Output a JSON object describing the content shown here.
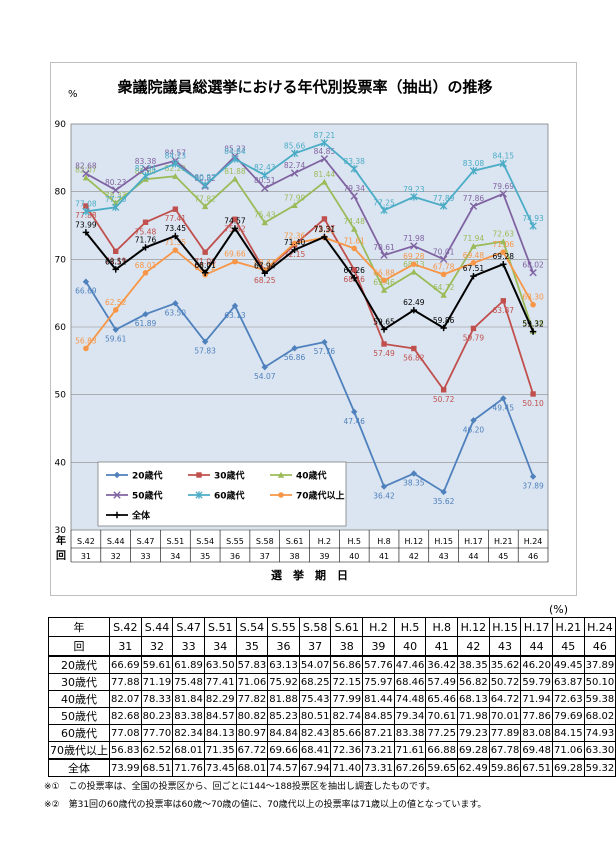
{
  "chart_data": {
    "type": "line",
    "title": "衆議院議員総選挙における年代別投票率（抽出）の推移",
    "ylabel": "%",
    "xlabel": "選　挙　期　日",
    "ylim": [
      30,
      90
    ],
    "yticks": [
      30,
      40,
      50,
      60,
      70,
      80,
      90
    ],
    "grid": true,
    "x_row_label_era": "年",
    "x_row_label_round": "回",
    "categories": [
      "S.42",
      "S.44",
      "S.47",
      "S.51",
      "S.54",
      "S.55",
      "S.58",
      "S.61",
      "H.2",
      "H.5",
      "H.8",
      "H.12",
      "H.15",
      "H.17",
      "H.21",
      "H.24"
    ],
    "rounds": [
      "31",
      "32",
      "33",
      "34",
      "35",
      "36",
      "37",
      "38",
      "39",
      "40",
      "41",
      "42",
      "43",
      "44",
      "45",
      "46"
    ],
    "series": [
      {
        "name": "20歳代",
        "color": "#4f81bd",
        "marker": "diamond",
        "values": [
          66.69,
          59.61,
          61.89,
          63.5,
          57.83,
          63.13,
          54.07,
          56.86,
          57.76,
          47.46,
          36.42,
          38.35,
          35.62,
          46.2,
          49.45,
          37.89
        ]
      },
      {
        "name": "30歳代",
        "color": "#c0504d",
        "marker": "square",
        "values": [
          77.88,
          71.19,
          75.48,
          77.41,
          71.06,
          75.92,
          68.25,
          72.15,
          75.97,
          68.46,
          57.49,
          56.82,
          50.72,
          59.79,
          63.87,
          50.1
        ]
      },
      {
        "name": "40歳代",
        "color": "#9bbb59",
        "marker": "triangle",
        "values": [
          82.07,
          78.33,
          81.84,
          82.29,
          77.82,
          81.88,
          75.43,
          77.99,
          81.44,
          74.48,
          65.46,
          68.13,
          64.72,
          71.94,
          72.63,
          59.38
        ]
      },
      {
        "name": "50歳代",
        "color": "#8064a2",
        "marker": "x",
        "values": [
          82.68,
          80.23,
          83.38,
          84.57,
          80.82,
          85.23,
          80.51,
          82.74,
          84.85,
          79.34,
          70.61,
          71.98,
          70.01,
          77.86,
          79.69,
          68.02
        ]
      },
      {
        "name": "60歳代",
        "color": "#4bacc6",
        "marker": "star",
        "values": [
          77.08,
          77.7,
          82.34,
          84.13,
          80.97,
          84.84,
          82.43,
          85.66,
          87.21,
          83.38,
          77.25,
          79.23,
          77.89,
          83.08,
          84.15,
          74.93
        ]
      },
      {
        "name": "70歳代以上",
        "color": "#f79646",
        "marker": "circle",
        "values": [
          56.83,
          62.52,
          68.01,
          71.35,
          67.72,
          69.66,
          68.41,
          72.36,
          73.21,
          71.61,
          66.88,
          69.28,
          67.78,
          69.48,
          71.06,
          63.3
        ]
      },
      {
        "name": "全体",
        "color": "#000000",
        "marker": "plus",
        "values": [
          73.99,
          68.51,
          71.76,
          73.45,
          68.01,
          74.57,
          67.94,
          71.4,
          73.31,
          67.26,
          59.65,
          62.49,
          59.86,
          67.51,
          69.28,
          59.32
        ]
      }
    ]
  },
  "table": {
    "unit": "(%)",
    "era_label": "年",
    "round_label": "回",
    "eras": [
      "S.42",
      "S.44",
      "S.47",
      "S.51",
      "S.54",
      "S.55",
      "S.58",
      "S.61",
      "H.2",
      "H.5",
      "H.8",
      "H.12",
      "H.15",
      "H.17",
      "H.21",
      "H.24"
    ],
    "rounds": [
      "31",
      "32",
      "33",
      "34",
      "35",
      "36",
      "37",
      "38",
      "39",
      "40",
      "41",
      "42",
      "43",
      "44",
      "45",
      "46"
    ],
    "rows": [
      {
        "label": "20歳代",
        "values": [
          "66.69",
          "59.61",
          "61.89",
          "63.50",
          "57.83",
          "63.13",
          "54.07",
          "56.86",
          "57.76",
          "47.46",
          "36.42",
          "38.35",
          "35.62",
          "46.20",
          "49.45",
          "37.89"
        ]
      },
      {
        "label": "30歳代",
        "values": [
          "77.88",
          "71.19",
          "75.48",
          "77.41",
          "71.06",
          "75.92",
          "68.25",
          "72.15",
          "75.97",
          "68.46",
          "57.49",
          "56.82",
          "50.72",
          "59.79",
          "63.87",
          "50.10"
        ]
      },
      {
        "label": "40歳代",
        "values": [
          "82.07",
          "78.33",
          "81.84",
          "82.29",
          "77.82",
          "81.88",
          "75.43",
          "77.99",
          "81.44",
          "74.48",
          "65.46",
          "68.13",
          "64.72",
          "71.94",
          "72.63",
          "59.38"
        ]
      },
      {
        "label": "50歳代",
        "values": [
          "82.68",
          "80.23",
          "83.38",
          "84.57",
          "80.82",
          "85.23",
          "80.51",
          "82.74",
          "84.85",
          "79.34",
          "70.61",
          "71.98",
          "70.01",
          "77.86",
          "79.69",
          "68.02"
        ]
      },
      {
        "label": "60歳代",
        "values": [
          "77.08",
          "77.70",
          "82.34",
          "84.13",
          "80.97",
          "84.84",
          "82.43",
          "85.66",
          "87.21",
          "83.38",
          "77.25",
          "79.23",
          "77.89",
          "83.08",
          "84.15",
          "74.93"
        ]
      },
      {
        "label": "70歳代以上",
        "values": [
          "56.83",
          "62.52",
          "68.01",
          "71.35",
          "67.72",
          "69.66",
          "68.41",
          "72.36",
          "73.21",
          "71.61",
          "66.88",
          "69.28",
          "67.78",
          "69.48",
          "71.06",
          "63.30"
        ]
      },
      {
        "label": "全体",
        "values": [
          "73.99",
          "68.51",
          "71.76",
          "73.45",
          "68.01",
          "74.57",
          "67.94",
          "71.40",
          "73.31",
          "67.26",
          "59.65",
          "62.49",
          "59.86",
          "67.51",
          "69.28",
          "59.32"
        ]
      }
    ]
  },
  "notes": [
    "※①　この投票率は、全国の投票区から、回ごとに144～188投票区を抽出し調査したものです。",
    "※②　第31回の60歳代の投票率は60歳～70歳の値に、70歳代以上の投票率は71歳以上の値となっています。"
  ]
}
